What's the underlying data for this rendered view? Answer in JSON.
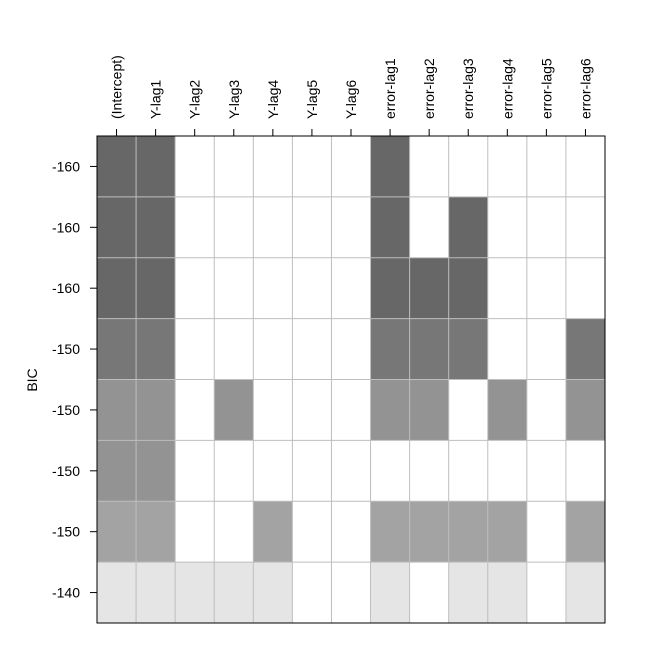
{
  "chart_data": {
    "type": "heatmap",
    "title": "",
    "xlabel": "",
    "ylabel": "BIC",
    "columns": [
      "(Intercept)",
      "Y-lag1",
      "Y-lag2",
      "Y-lag3",
      "Y-lag4",
      "Y-lag5",
      "Y-lag6",
      "error-lag1",
      "error-lag2",
      "error-lag3",
      "error-lag4",
      "error-lag5",
      "error-lag6"
    ],
    "row_labels": [
      "-160",
      "-160",
      "-160",
      "-150",
      "-150",
      "-150",
      "-150",
      "-140"
    ],
    "row_shades": [
      "#676767",
      "#676767",
      "#676767",
      "#777777",
      "#939393",
      "#939393",
      "#a3a3a3",
      "#e5e5e5"
    ],
    "inclusion": [
      [
        1,
        1,
        0,
        0,
        0,
        0,
        0,
        1,
        0,
        0,
        0,
        0,
        0
      ],
      [
        1,
        1,
        0,
        0,
        0,
        0,
        0,
        1,
        0,
        1,
        0,
        0,
        0
      ],
      [
        1,
        1,
        0,
        0,
        0,
        0,
        0,
        1,
        1,
        1,
        0,
        0,
        0
      ],
      [
        1,
        1,
        0,
        0,
        0,
        0,
        0,
        1,
        1,
        1,
        0,
        0,
        1
      ],
      [
        1,
        1,
        0,
        1,
        0,
        0,
        0,
        1,
        1,
        0,
        1,
        0,
        1
      ],
      [
        1,
        1,
        0,
        0,
        0,
        0,
        0,
        0,
        0,
        0,
        0,
        0,
        0
      ],
      [
        1,
        1,
        0,
        0,
        1,
        0,
        0,
        1,
        1,
        1,
        1,
        0,
        1
      ],
      [
        1,
        1,
        1,
        1,
        1,
        0,
        0,
        1,
        0,
        1,
        1,
        0,
        1
      ]
    ],
    "grid": true
  }
}
